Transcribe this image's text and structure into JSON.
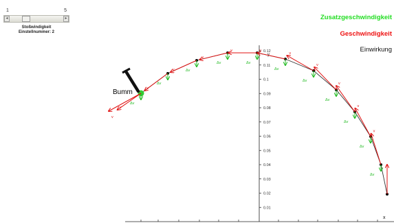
{
  "slider": {
    "min_label": "1",
    "max_label": "5",
    "label": "Stoßwindigkeit",
    "setting_text": "Einstellnummer: 2",
    "value": 2,
    "range": [
      1,
      5
    ]
  },
  "legend": {
    "zusatz": "Zusatzgeschwindigkeit",
    "geschwindigkeit": "Geschwindigkeit",
    "einwirkung": "Einwirkung",
    "zusatz_color": "#22dd22",
    "geschwindigkeit_color": "#ee1111",
    "einwirkung_color": "#111111"
  },
  "bumm_label": "Bumm",
  "axis": {
    "y_ticks": [
      "0.12",
      "0.11",
      "0.1",
      "0.09",
      "0.08",
      "0.07",
      "0.06",
      "0.05",
      "0.04",
      "0.03",
      "0.02",
      "0.01"
    ],
    "x_mark": "x",
    "y_mark": "y",
    "velocity_label": "v",
    "delta_label": "Δv"
  },
  "icons": {
    "slider_left": "left-arrow-icon",
    "slider_right": "right-arrow-icon",
    "hammer": "hammer-icon"
  }
}
